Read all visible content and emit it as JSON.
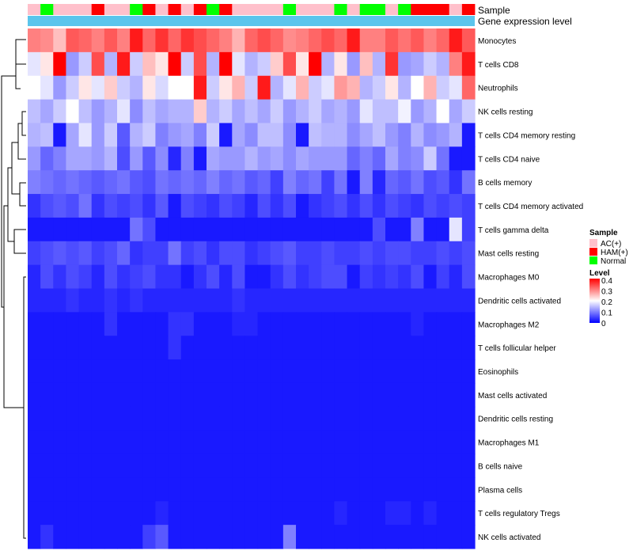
{
  "chart_data": {
    "type": "heatmap",
    "title": "",
    "annotation_tracks": [
      "Sample",
      "Gene expression level"
    ],
    "legend": {
      "sample_title": "Sample",
      "sample_groups": [
        {
          "label": "AC(+)",
          "color": "#ffc0cb"
        },
        {
          "label": "HAM(+)",
          "color": "#ff0000"
        },
        {
          "label": "Normal",
          "color": "#00ff00"
        }
      ],
      "level_title": "Level",
      "level_ticks": [
        "0.4",
        "0.3",
        "0.2",
        "0.1",
        "0"
      ],
      "level_range": [
        0,
        0.4
      ],
      "color_stops": [
        "#0000ff",
        "#ffffff",
        "#ff0000"
      ],
      "gene_expression_color": "#5bc5ec"
    },
    "sample_groups_per_column": [
      "AC(+)",
      "Normal",
      "AC(+)",
      "AC(+)",
      "AC(+)",
      "HAM(+)",
      "AC(+)",
      "AC(+)",
      "Normal",
      "HAM(+)",
      "AC(+)",
      "HAM(+)",
      "AC(+)",
      "HAM(+)",
      "Normal",
      "HAM(+)",
      "AC(+)",
      "AC(+)",
      "AC(+)",
      "AC(+)",
      "Normal",
      "AC(+)",
      "AC(+)",
      "AC(+)",
      "Normal",
      "AC(+)",
      "Normal",
      "Normal",
      "AC(+)",
      "Normal",
      "HAM(+)",
      "HAM(+)",
      "HAM(+)",
      "AC(+)",
      "HAM(+)"
    ],
    "rows": [
      "Monocytes",
      "T cells CD8",
      "Neutrophils",
      "NK cells resting",
      "T cells CD4 memory resting",
      "T cells CD4 naive",
      "B cells memory",
      "T cells CD4 memory activated",
      "T cells gamma delta",
      "Mast cells resting",
      "Macrophages M0",
      "Dendritic cells activated",
      "Macrophages M2",
      "T cells follicular helper",
      "Eosinophils",
      "Mast cells activated",
      "Dendritic cells resting",
      "Macrophages M1",
      "B cells naive",
      "Plasma cells",
      "T cells regulatory  Tregs",
      "NK cells activated"
    ],
    "values": [
      [
        0.3,
        0.29,
        0.25,
        0.33,
        0.32,
        0.3,
        0.33,
        0.3,
        0.38,
        0.32,
        0.36,
        0.32,
        0.36,
        0.34,
        0.32,
        0.3,
        0.26,
        0.32,
        0.34,
        0.32,
        0.29,
        0.3,
        0.32,
        0.34,
        0.32,
        0.38,
        0.3,
        0.3,
        0.33,
        0.31,
        0.33,
        0.3,
        0.32,
        0.38,
        0.33
      ],
      [
        0.18,
        0.22,
        0.4,
        0.12,
        0.16,
        0.34,
        0.14,
        0.38,
        0.16,
        0.25,
        0.22,
        0.4,
        0.16,
        0.34,
        0.14,
        0.4,
        0.18,
        0.14,
        0.16,
        0.24,
        0.34,
        0.22,
        0.4,
        0.14,
        0.22,
        0.12,
        0.25,
        0.14,
        0.36,
        0.12,
        0.13,
        0.16,
        0.14,
        0.3,
        0.38
      ],
      [
        0.2,
        0.18,
        0.12,
        0.16,
        0.22,
        0.18,
        0.24,
        0.16,
        0.14,
        0.22,
        0.17,
        0.2,
        0.2,
        0.38,
        0.16,
        0.22,
        0.26,
        0.16,
        0.38,
        0.14,
        0.18,
        0.26,
        0.16,
        0.18,
        0.28,
        0.26,
        0.14,
        0.16,
        0.22,
        0.14,
        0.2,
        0.26,
        0.16,
        0.18,
        0.32
      ],
      [
        0.15,
        0.13,
        0.16,
        0.2,
        0.15,
        0.12,
        0.14,
        0.18,
        0.11,
        0.15,
        0.13,
        0.14,
        0.14,
        0.24,
        0.14,
        0.16,
        0.13,
        0.15,
        0.13,
        0.16,
        0.12,
        0.14,
        0.16,
        0.13,
        0.14,
        0.12,
        0.18,
        0.15,
        0.15,
        0.19,
        0.12,
        0.14,
        0.2,
        0.13,
        0.16
      ],
      [
        0.14,
        0.15,
        0.02,
        0.13,
        0.18,
        0.12,
        0.16,
        0.07,
        0.14,
        0.16,
        0.1,
        0.12,
        0.13,
        0.1,
        0.16,
        0.02,
        0.13,
        0.11,
        0.15,
        0.15,
        0.11,
        0.02,
        0.15,
        0.14,
        0.14,
        0.11,
        0.13,
        0.15,
        0.12,
        0.1,
        0.14,
        0.11,
        0.12,
        0.14,
        0.02
      ],
      [
        0.12,
        0.08,
        0.1,
        0.13,
        0.13,
        0.12,
        0.14,
        0.06,
        0.12,
        0.07,
        0.11,
        0.03,
        0.1,
        0.02,
        0.13,
        0.12,
        0.12,
        0.14,
        0.12,
        0.13,
        0.11,
        0.13,
        0.12,
        0.12,
        0.12,
        0.08,
        0.1,
        0.08,
        0.13,
        0.1,
        0.11,
        0.16,
        0.09,
        0.02,
        0.02
      ],
      [
        0.1,
        0.09,
        0.08,
        0.09,
        0.08,
        0.07,
        0.08,
        0.09,
        0.07,
        0.06,
        0.09,
        0.08,
        0.09,
        0.08,
        0.1,
        0.08,
        0.09,
        0.07,
        0.08,
        0.05,
        0.1,
        0.08,
        0.09,
        0.05,
        0.09,
        0.02,
        0.1,
        0.03,
        0.08,
        0.07,
        0.09,
        0.06,
        0.07,
        0.04,
        0.09
      ],
      [
        0.04,
        0.06,
        0.07,
        0.06,
        0.09,
        0.04,
        0.06,
        0.05,
        0.06,
        0.04,
        0.07,
        0.02,
        0.06,
        0.05,
        0.04,
        0.06,
        0.05,
        0.03,
        0.06,
        0.04,
        0.06,
        0.02,
        0.04,
        0.05,
        0.06,
        0.04,
        0.06,
        0.04,
        0.06,
        0.05,
        0.04,
        0.06,
        0.05,
        0.06,
        0.05
      ],
      [
        0.02,
        0.02,
        0.02,
        0.02,
        0.02,
        0.02,
        0.02,
        0.02,
        0.09,
        0.06,
        0.02,
        0.02,
        0.02,
        0.02,
        0.02,
        0.02,
        0.02,
        0.02,
        0.02,
        0.02,
        0.02,
        0.02,
        0.02,
        0.02,
        0.02,
        0.02,
        0.02,
        0.06,
        0.02,
        0.02,
        0.1,
        0.02,
        0.02,
        0.18,
        0.05
      ],
      [
        0.05,
        0.06,
        0.07,
        0.06,
        0.07,
        0.05,
        0.06,
        0.08,
        0.04,
        0.05,
        0.05,
        0.09,
        0.05,
        0.06,
        0.04,
        0.06,
        0.06,
        0.04,
        0.05,
        0.06,
        0.07,
        0.05,
        0.05,
        0.06,
        0.05,
        0.05,
        0.06,
        0.05,
        0.06,
        0.06,
        0.05,
        0.05,
        0.06,
        0.05,
        0.06
      ],
      [
        0.03,
        0.06,
        0.04,
        0.06,
        0.05,
        0.03,
        0.06,
        0.04,
        0.05,
        0.06,
        0.04,
        0.04,
        0.02,
        0.04,
        0.06,
        0.03,
        0.06,
        0.02,
        0.02,
        0.04,
        0.06,
        0.04,
        0.05,
        0.06,
        0.06,
        0.02,
        0.05,
        0.04,
        0.05,
        0.04,
        0.06,
        0.02,
        0.05,
        0.03,
        0.06
      ],
      [
        0.03,
        0.03,
        0.03,
        0.04,
        0.03,
        0.03,
        0.04,
        0.03,
        0.04,
        0.03,
        0.03,
        0.03,
        0.03,
        0.03,
        0.03,
        0.03,
        0.04,
        0.03,
        0.03,
        0.03,
        0.03,
        0.03,
        0.03,
        0.03,
        0.03,
        0.03,
        0.03,
        0.03,
        0.03,
        0.03,
        0.03,
        0.03,
        0.03,
        0.03,
        0.03
      ],
      [
        0.02,
        0.02,
        0.02,
        0.02,
        0.02,
        0.02,
        0.04,
        0.02,
        0.02,
        0.02,
        0.02,
        0.04,
        0.04,
        0.02,
        0.02,
        0.02,
        0.03,
        0.03,
        0.02,
        0.02,
        0.02,
        0.02,
        0.02,
        0.02,
        0.02,
        0.02,
        0.02,
        0.02,
        0.02,
        0.02,
        0.03,
        0.02,
        0.02,
        0.02,
        0.02
      ],
      [
        0.02,
        0.02,
        0.02,
        0.02,
        0.02,
        0.02,
        0.02,
        0.02,
        0.02,
        0.02,
        0.02,
        0.04,
        0.02,
        0.02,
        0.02,
        0.02,
        0.02,
        0.02,
        0.02,
        0.02,
        0.02,
        0.02,
        0.02,
        0.02,
        0.02,
        0.02,
        0.02,
        0.02,
        0.02,
        0.02,
        0.02,
        0.02,
        0.02,
        0.02,
        0.02
      ],
      [
        0.02,
        0.02,
        0.02,
        0.02,
        0.02,
        0.02,
        0.02,
        0.02,
        0.02,
        0.02,
        0.02,
        0.02,
        0.02,
        0.02,
        0.02,
        0.02,
        0.02,
        0.02,
        0.02,
        0.02,
        0.02,
        0.02,
        0.02,
        0.02,
        0.02,
        0.02,
        0.02,
        0.02,
        0.02,
        0.02,
        0.02,
        0.02,
        0.02,
        0.02,
        0.02
      ],
      [
        0.02,
        0.02,
        0.02,
        0.02,
        0.02,
        0.02,
        0.02,
        0.02,
        0.02,
        0.02,
        0.02,
        0.02,
        0.02,
        0.02,
        0.02,
        0.02,
        0.02,
        0.02,
        0.02,
        0.02,
        0.02,
        0.02,
        0.02,
        0.02,
        0.02,
        0.02,
        0.02,
        0.02,
        0.02,
        0.02,
        0.02,
        0.02,
        0.02,
        0.02,
        0.02
      ],
      [
        0.02,
        0.02,
        0.02,
        0.02,
        0.02,
        0.02,
        0.02,
        0.02,
        0.02,
        0.02,
        0.02,
        0.02,
        0.02,
        0.02,
        0.02,
        0.02,
        0.02,
        0.02,
        0.02,
        0.02,
        0.02,
        0.02,
        0.02,
        0.02,
        0.02,
        0.02,
        0.02,
        0.02,
        0.02,
        0.02,
        0.02,
        0.02,
        0.02,
        0.02,
        0.02
      ],
      [
        0.02,
        0.02,
        0.02,
        0.02,
        0.02,
        0.02,
        0.02,
        0.02,
        0.02,
        0.02,
        0.02,
        0.02,
        0.02,
        0.02,
        0.02,
        0.02,
        0.02,
        0.02,
        0.02,
        0.02,
        0.02,
        0.02,
        0.02,
        0.02,
        0.02,
        0.02,
        0.02,
        0.02,
        0.02,
        0.02,
        0.02,
        0.02,
        0.02,
        0.02,
        0.02
      ],
      [
        0.02,
        0.02,
        0.02,
        0.02,
        0.02,
        0.02,
        0.02,
        0.02,
        0.02,
        0.02,
        0.02,
        0.02,
        0.02,
        0.02,
        0.02,
        0.02,
        0.02,
        0.02,
        0.02,
        0.02,
        0.02,
        0.02,
        0.02,
        0.02,
        0.02,
        0.02,
        0.02,
        0.02,
        0.02,
        0.02,
        0.02,
        0.02,
        0.02,
        0.02,
        0.02
      ],
      [
        0.02,
        0.02,
        0.02,
        0.02,
        0.02,
        0.02,
        0.02,
        0.02,
        0.02,
        0.02,
        0.02,
        0.02,
        0.02,
        0.02,
        0.02,
        0.02,
        0.02,
        0.02,
        0.02,
        0.02,
        0.02,
        0.02,
        0.02,
        0.02,
        0.02,
        0.02,
        0.02,
        0.02,
        0.02,
        0.02,
        0.02,
        0.02,
        0.02,
        0.02,
        0.02
      ],
      [
        0.02,
        0.02,
        0.02,
        0.02,
        0.02,
        0.02,
        0.02,
        0.02,
        0.02,
        0.02,
        0.03,
        0.02,
        0.02,
        0.02,
        0.02,
        0.02,
        0.02,
        0.02,
        0.02,
        0.02,
        0.02,
        0.02,
        0.02,
        0.02,
        0.03,
        0.02,
        0.02,
        0.02,
        0.03,
        0.03,
        0.02,
        0.03,
        0.02,
        0.02,
        0.02
      ],
      [
        0.02,
        0.04,
        0.02,
        0.02,
        0.02,
        0.02,
        0.02,
        0.02,
        0.02,
        0.05,
        0.07,
        0.02,
        0.02,
        0.02,
        0.02,
        0.02,
        0.02,
        0.02,
        0.02,
        0.02,
        0.1,
        0.02,
        0.02,
        0.02,
        0.02,
        0.02,
        0.02,
        0.02,
        0.02,
        0.02,
        0.02,
        0.02,
        0.02,
        0.02,
        0.02
      ]
    ]
  }
}
